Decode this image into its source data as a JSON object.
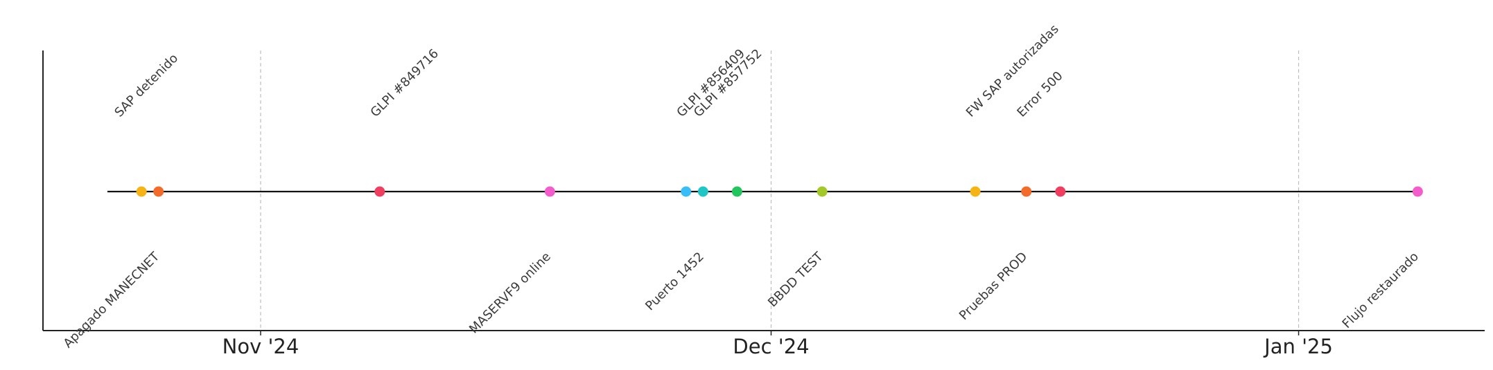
{
  "chart_data": {
    "type": "scatter",
    "title": "",
    "xlabel": "",
    "ylabel": "",
    "grid": "vertical dashed lines at month ticks",
    "x_range": [
      "2024-10-21",
      "2025-01-23"
    ],
    "ticks": [
      {
        "date": "2024-11-01",
        "label": "Nov '24"
      },
      {
        "date": "2024-12-01",
        "label": "Dec '24"
      },
      {
        "date": "2025-01-01",
        "label": "Jan '25"
      }
    ],
    "events": [
      {
        "date": "2024-10-25",
        "label": "",
        "color": "#f5b316",
        "position": "none"
      },
      {
        "date": "2024-10-26",
        "label": "Apagado MANECNET",
        "color": "#f26b2a",
        "position": "below"
      },
      {
        "date": "2024-10-26",
        "label": "SAP detenido",
        "color": "#f26b2a",
        "position": "above-top"
      },
      {
        "date": "2024-11-08",
        "label": "GLPI #849716",
        "color": "#ef3e5f",
        "position": "above"
      },
      {
        "date": "2024-11-18",
        "label": "MASERVF9 online",
        "color": "#f25ccb",
        "position": "below"
      },
      {
        "date": "2024-11-26",
        "label": "",
        "color": "#38bdf8",
        "position": "none"
      },
      {
        "date": "2024-11-26",
        "label": "GLPI #856409",
        "color": "#38bdf8",
        "position": "above"
      },
      {
        "date": "2024-11-27",
        "label": "Puerto 1452",
        "color": "#1ec6c6",
        "position": "below"
      },
      {
        "date": "2024-11-27",
        "label": "GLPI #857752",
        "color": "#1ec6c6",
        "position": "above"
      },
      {
        "date": "2024-11-29",
        "label": "",
        "color": "#22c55e",
        "position": "none"
      },
      {
        "date": "2024-12-04",
        "label": "BBDD TEST",
        "color": "#a3c928",
        "position": "below"
      },
      {
        "date": "2024-12-13",
        "label": "",
        "color": "#f5b316",
        "position": "none"
      },
      {
        "date": "2024-12-13",
        "label": "FW SAP autorizadas",
        "color": "#f5b316",
        "position": "above"
      },
      {
        "date": "2024-12-16",
        "label": "Pruebas PROD",
        "color": "#f26b2a",
        "position": "below"
      },
      {
        "date": "2024-12-16",
        "label": "Error 500",
        "color": "#f26b2a",
        "position": "above"
      },
      {
        "date": "2024-12-18",
        "label": "",
        "color": "#ef3e5f",
        "position": "none"
      },
      {
        "date": "2025-01-08",
        "label": "Flujo restaurado",
        "color": "#f25ccb",
        "position": "below"
      }
    ]
  }
}
